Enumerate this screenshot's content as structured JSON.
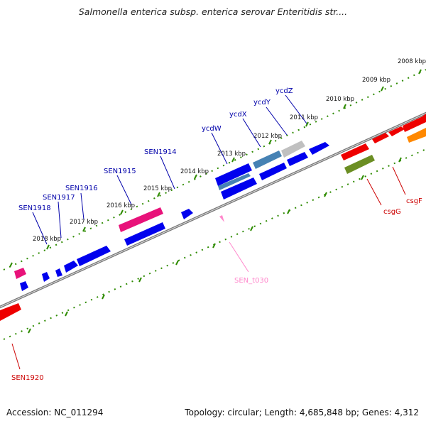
{
  "title": "Salmonella enterica subsp. enterica serovar Enteritidis str....",
  "footer": {
    "accession": "Accession: NC_011294",
    "summary": "Topology: circular; Length: 4,685,848 bp; Genes: 4,312"
  },
  "ticks": [
    "2008 kbp",
    "2009 kbp",
    "2010 kbp",
    "2011 kbp",
    "2012 kbp",
    "2013 kbp",
    "2014 kbp",
    "2015 kbp",
    "2016 kbp",
    "2017 kbp",
    "2018 kbp"
  ],
  "gene_labels": [
    "ycdZ",
    "ycdY",
    "ycdX",
    "ycdW",
    "SEN1914",
    "SEN1915",
    "SEN1916",
    "SEN1917",
    "SEN1918",
    "SEN_t030",
    "csgG",
    "csgF",
    "SEN1920"
  ],
  "colors": {
    "cds_blue": "#0000ee",
    "pseudogene": "#e8127a",
    "trna": "#ff88cc",
    "red_cds": "#ee0000",
    "orange_cds": "#ff8800",
    "olive_cds": "#6b8e23",
    "grey_cds": "#c0c0c0",
    "steel_cds": "#4682b4",
    "tick_green": "#2e8b00",
    "backbone": "#888888"
  }
}
